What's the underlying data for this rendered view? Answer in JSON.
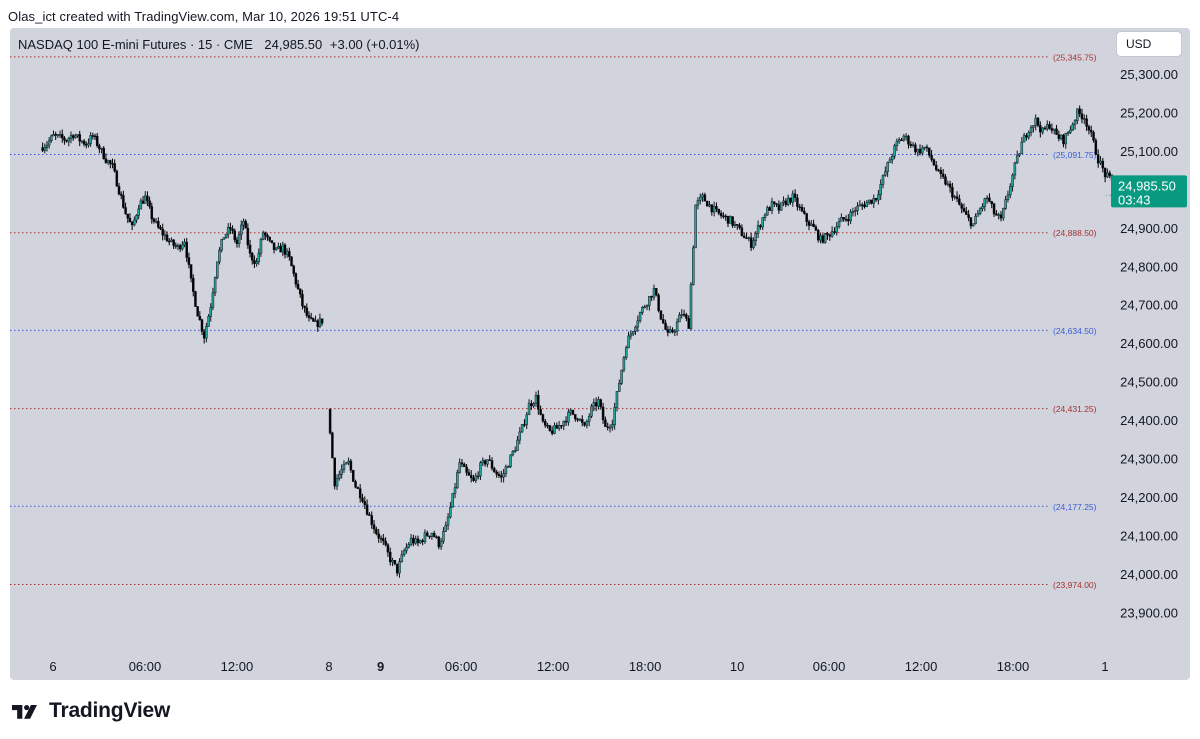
{
  "header": {
    "credit": "Olas_ict created with TradingView.com, Mar 10, 2026 19:51 UTC-4"
  },
  "legend": {
    "symbol": "NASDAQ 100 E-mini Futures · 15 · CME",
    "price": "24,985.50",
    "change": "+3.00 (+0.01%)"
  },
  "currency_button": {
    "label": "USD"
  },
  "last_price": {
    "value": "24,985.50",
    "countdown": "03:43",
    "color": "#089981"
  },
  "brand": {
    "name": "TradingView"
  },
  "colors": {
    "up": "#26a69a",
    "down": "#000000",
    "background": "#d1d4dc",
    "level_red": "#a83232",
    "level_blue": "#3d5bd9"
  },
  "chart_data": {
    "type": "candlestick",
    "interval": "15",
    "ylim": [
      23840,
      25400
    ],
    "y_ticks": [
      {
        "value": 25300,
        "label": "25,300.00"
      },
      {
        "value": 25200,
        "label": "25,200.00"
      },
      {
        "value": 25100,
        "label": "25,100.00"
      },
      {
        "value": 25000,
        "label": "25,000.00"
      },
      {
        "value": 24900,
        "label": "24,900.00"
      },
      {
        "value": 24800,
        "label": "24,800.00"
      },
      {
        "value": 24700,
        "label": "24,700.00"
      },
      {
        "value": 24600,
        "label": "24,600.00"
      },
      {
        "value": 24500,
        "label": "24,500.00"
      },
      {
        "value": 24400,
        "label": "24,400.00"
      },
      {
        "value": 24300,
        "label": "24,300.00"
      },
      {
        "value": 24200,
        "label": "24,200.00"
      },
      {
        "value": 24100,
        "label": "24,100.00"
      },
      {
        "value": 24000,
        "label": "24,000.00"
      },
      {
        "value": 23900,
        "label": "23,900.00"
      }
    ],
    "x_ticks": [
      {
        "t": 0.0,
        "label": "6",
        "bold": false
      },
      {
        "t": 0.16,
        "label": "06:00",
        "bold": false
      },
      {
        "t": 0.32,
        "label": "12:00",
        "bold": false
      },
      {
        "t": 0.48,
        "label": "8",
        "bold": false
      },
      {
        "t": 0.57,
        "label": "9",
        "bold": true
      },
      {
        "t": 0.71,
        "label": "06:00",
        "bold": false
      },
      {
        "t": 0.87,
        "label": "12:00",
        "bold": false
      },
      {
        "t": 1.03,
        "label": "18:00",
        "bold": false
      },
      {
        "t": 1.19,
        "label": "10",
        "bold": false
      },
      {
        "t": 1.35,
        "label": "06:00",
        "bold": false
      },
      {
        "t": 1.51,
        "label": "12:00",
        "bold": false
      },
      {
        "t": 1.67,
        "label": "18:00",
        "bold": false
      },
      {
        "t": 1.83,
        "label": "1",
        "bold": false
      }
    ],
    "levels": [
      {
        "price": 25345.75,
        "label": "(25,345.75)",
        "color": "red"
      },
      {
        "price": 25091.75,
        "label": "(25,091.75)",
        "color": "blue"
      },
      {
        "price": 24888.5,
        "label": "(24,888.50)",
        "color": "red"
      },
      {
        "price": 24634.5,
        "label": "(24,634.50)",
        "color": "blue"
      },
      {
        "price": 24431.25,
        "label": "(24,431.25)",
        "color": "red"
      },
      {
        "price": 24177.25,
        "label": "(24,177.25)",
        "color": "blue"
      },
      {
        "price": 23974.0,
        "label": "(23,974.00)",
        "color": "red"
      }
    ],
    "segments": [
      {
        "t_start": -0.02,
        "t_end": 0.47,
        "path": [
          [
            25110,
            25120,
            25140,
            25135,
            25130,
            25145,
            25130,
            25120,
            25140,
            25110
          ],
          [
            25080,
            25060,
            25000,
            24940,
            24900,
            24960,
            24980,
            24930,
            24900,
            24880,
            24860,
            24850,
            24870
          ],
          [
            24760,
            24680,
            24620,
            24700,
            24820,
            24880,
            24900,
            24860,
            24920,
            24830,
            24810,
            24890,
            24860,
            24840,
            24850,
            24820
          ],
          [
            24760,
            24700,
            24660,
            24650,
            24660
          ]
        ]
      },
      {
        "t_start": 0.48,
        "t_end": 1.965,
        "path": [
          [
            24430,
            24240,
            24270,
            24290,
            24230,
            24200,
            24150,
            24110,
            24080,
            24040,
            24010,
            24060
          ],
          [
            24090,
            24080,
            24100,
            24110,
            24080,
            24120
          ],
          [
            24200,
            24290,
            24260,
            24240,
            24280,
            24300,
            24270,
            24250,
            24290,
            24330,
            24380
          ],
          [
            24440,
            24460,
            24390,
            24370,
            24380,
            24400,
            24420,
            24410,
            24380,
            24430,
            24450,
            24380
          ],
          [
            24400,
            24500,
            24600,
            24640,
            24680,
            24710,
            24740,
            24670,
            24620,
            24640,
            24680,
            24650
          ],
          [
            24960,
            24980,
            24960,
            24940,
            24930,
            24920,
            24900,
            24880,
            24860
          ],
          [
            24900,
            24940,
            24960,
            24950,
            24970,
            24980,
            24950,
            24920,
            24900,
            24870,
            24880,
            24900
          ],
          [
            24920,
            24930,
            24950,
            24960,
            24970,
            24980,
            25030,
            25080,
            25120,
            25140,
            25120,
            25100,
            25110
          ],
          [
            25080,
            25040,
            25020,
            24990,
            24960,
            24930,
            24910,
            24950,
            24980,
            24940,
            24920,
            24990,
            25060
          ],
          [
            25120,
            25160,
            25180,
            25150,
            25170,
            25140,
            25130,
            25160,
            25200,
            25190,
            25140
          ],
          [
            25080,
            25040,
            25020,
            25010,
            24990,
            24980,
            24970,
            25000,
            24990,
            24975,
            24960,
            24980,
            24985
          ]
        ]
      }
    ],
    "last_price": 24985.5
  }
}
